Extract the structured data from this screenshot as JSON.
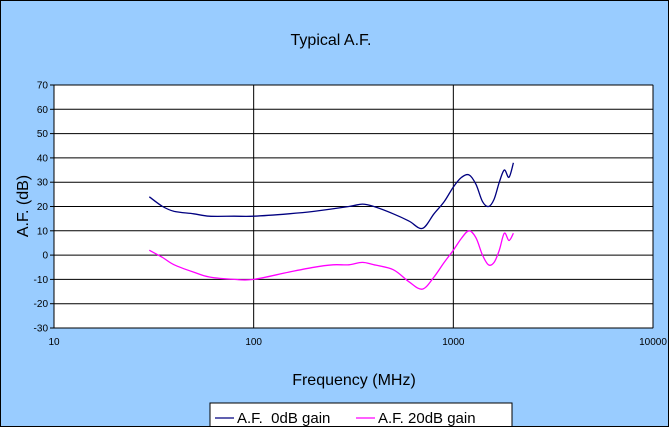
{
  "chart_data": {
    "type": "line",
    "title": "Typical A.F.",
    "xlabel": "Frequency (MHz)",
    "ylabel": "A.F. (dB)",
    "xscale": "log",
    "xlim": [
      10,
      10000
    ],
    "ylim": [
      -30,
      70
    ],
    "x_ticks": [
      "10",
      "100",
      "1000",
      "10000"
    ],
    "y_ticks": [
      "70",
      "60",
      "50",
      "40",
      "30",
      "20",
      "10",
      "0",
      "-10",
      "-20",
      "-30"
    ],
    "grid": "horizontal and vertical major gridlines",
    "legend_position": "bottom",
    "series": [
      {
        "name": "A.F.  0dB gain",
        "color": "#000080",
        "x": [
          30,
          35,
          40,
          50,
          60,
          80,
          100,
          150,
          200,
          300,
          350,
          400,
          500,
          600,
          700,
          800,
          900,
          1000,
          1100,
          1200,
          1300,
          1400,
          1500,
          1600,
          1700,
          1800,
          1900,
          2000
        ],
        "y": [
          24,
          20,
          18,
          17,
          16,
          16,
          16,
          17,
          18,
          20,
          21,
          20,
          17,
          14,
          11,
          17,
          22,
          28,
          32,
          33,
          29,
          22,
          20,
          23,
          30,
          35,
          32,
          38
        ]
      },
      {
        "name": "A.F. 20dB gain",
        "color": "#ff00ff",
        "x": [
          30,
          35,
          40,
          50,
          60,
          80,
          100,
          150,
          200,
          250,
          300,
          350,
          400,
          500,
          600,
          700,
          800,
          900,
          1000,
          1100,
          1200,
          1300,
          1400,
          1500,
          1600,
          1700,
          1800,
          1900,
          2000
        ],
        "y": [
          2,
          -1,
          -4,
          -7,
          -9,
          -10,
          -10,
          -7,
          -5,
          -4,
          -4,
          -3,
          -4,
          -6,
          -11,
          -14,
          -9,
          -3,
          2,
          7,
          10,
          7,
          0,
          -4,
          -3,
          2,
          9,
          6,
          9
        ]
      }
    ]
  }
}
